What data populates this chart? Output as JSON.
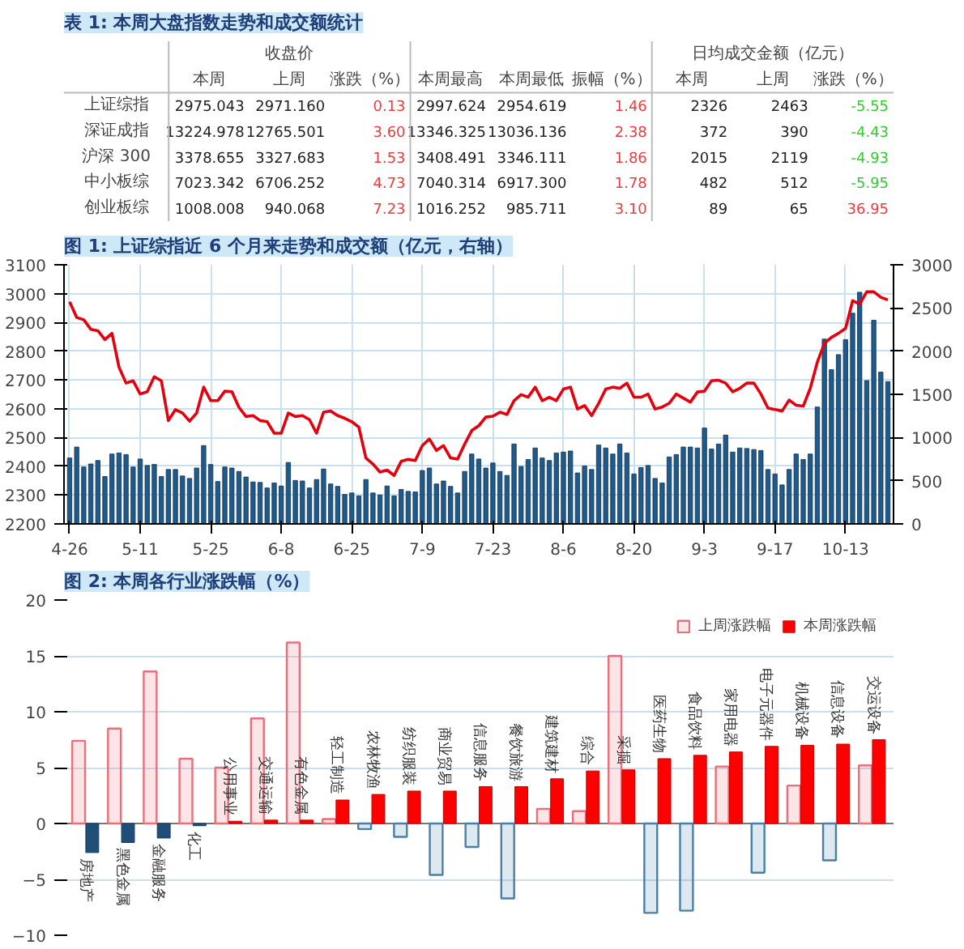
{
  "chart_data": [
    {
      "type": "heatmap",
      "title": "表 1: 本周大盘指数走势和成交额统计",
      "annotations": [
        "收盘价",
        "日均成交金额（亿元）"
      ],
      "categories": [
        "本周",
        "上周",
        "涨跌（%）",
        "本周最高",
        "本周最低",
        "振幅（%）",
        "本周",
        "上周",
        "涨跌（%）"
      ],
      "y_categories": [
        "上证综指",
        "深证成指",
        "沪深 300",
        "中小板综",
        "创业板综"
      ],
      "cells": [
        [
          2975.043,
          2971.16,
          0.13,
          2997.624,
          2954.619,
          1.46,
          2326,
          2463,
          -5.55
        ],
        [
          13224.978,
          12765.501,
          3.6,
          13346.325,
          13036.136,
          2.38,
          372,
          390,
          -4.43
        ],
        [
          3378.655,
          3327.683,
          1.53,
          3408.491,
          3346.111,
          1.86,
          2015,
          2119,
          -4.93
        ],
        [
          7023.342,
          6706.252,
          4.73,
          7040.314,
          6917.3,
          1.78,
          482,
          512,
          -5.95
        ],
        [
          1008.008,
          940.068,
          7.23,
          1016.252,
          985.711,
          3.1,
          89,
          65,
          36.95
        ]
      ],
      "cell_labels": [
        [
          "2975.043",
          "2971.160",
          "0.13",
          "2997.624",
          "2954.619",
          "1.46",
          "2326",
          "2463",
          "-5.55"
        ],
        [
          "13224.978",
          "12765.501",
          "3.60",
          "13346.325",
          "13036.136",
          "2.38",
          "372",
          "390",
          "-4.43"
        ],
        [
          "3378.655",
          "3327.683",
          "1.53",
          "3408.491",
          "3346.111",
          "1.86",
          "2015",
          "2119",
          "-4.93"
        ],
        [
          "7023.342",
          "6706.252",
          "4.73",
          "7040.314",
          "6917.300",
          "1.78",
          "482",
          "512",
          "-5.95"
        ],
        [
          "1008.008",
          "940.068",
          "7.23",
          "1016.252",
          "985.711",
          "3.10",
          "89",
          "65",
          "36.95"
        ]
      ]
    },
    {
      "type": "bar",
      "title": "图 1: 上证综指近 6 个月来走势和成交额（亿元，右轴）",
      "categories": [
        "4-26",
        null,
        null,
        null,
        null,
        null,
        null,
        null,
        null,
        null,
        "5-11",
        null,
        null,
        null,
        null,
        null,
        null,
        null,
        null,
        null,
        "5-25",
        null,
        null,
        null,
        null,
        null,
        null,
        null,
        null,
        null,
        "6-8",
        null,
        null,
        null,
        null,
        null,
        null,
        null,
        null,
        null,
        "6-25",
        null,
        null,
        null,
        null,
        null,
        null,
        null,
        null,
        null,
        "7-9",
        null,
        null,
        null,
        null,
        null,
        null,
        null,
        null,
        null,
        "7-23",
        null,
        null,
        null,
        null,
        null,
        null,
        null,
        null,
        null,
        "8-6",
        null,
        null,
        null,
        null,
        null,
        null,
        null,
        null,
        null,
        "8-20",
        null,
        null,
        null,
        null,
        null,
        null,
        null,
        null,
        null,
        "9-3",
        null,
        null,
        null,
        null,
        null,
        null,
        null,
        null,
        null,
        "9-17",
        null,
        null,
        null,
        null,
        null,
        null,
        null,
        null,
        null,
        "10-13",
        null,
        null,
        null,
        null,
        null,
        null
      ],
      "ylim": [
        2200,
        3100
      ],
      "yticks": [
        2200,
        2300,
        2400,
        2500,
        2600,
        2700,
        2800,
        2900,
        3000,
        3100
      ],
      "y2lim": [
        0,
        3000
      ],
      "y2ticks": [
        0,
        500,
        1000,
        1500,
        2000,
        2500,
        3000
      ],
      "grid": true,
      "series": [
        {
          "type": "bar",
          "axis": "y2",
          "color": "#1f5a8c",
          "values": [
            763,
            890,
            659,
            694,
            734,
            549,
            809,
            821,
            803,
            659,
            751,
            676,
            688,
            549,
            630,
            630,
            555,
            526,
            647,
            907,
            688,
            491,
            659,
            647,
            607,
            543,
            486,
            480,
            416,
            474,
            439,
            711,
            503,
            497,
            416,
            514,
            636,
            462,
            434,
            341,
            358,
            324,
            514,
            358,
            335,
            439,
            324,
            399,
            376,
            370,
            618,
            647,
            462,
            497,
            434,
            358,
            607,
            809,
            751,
            647,
            705,
            607,
            561,
            925,
            665,
            746,
            879,
            763,
            734,
            821,
            832,
            844,
            590,
            671,
            630,
            913,
            879,
            809,
            925,
            821,
            578,
            653,
            676,
            526,
            474,
            775,
            803,
            890,
            890,
            879,
            1110,
            867,
            925,
            1029,
            832,
            879,
            873,
            861,
            850,
            630,
            578,
            451,
            630,
            809,
            746,
            809,
            1353,
            2139,
            1786,
            1960,
            2133,
            2439,
            2682,
            1659,
            2358,
            1757,
            1647
          ]
        },
        {
          "type": "line",
          "color": "#e3000f",
          "values": [
            2971,
            2917,
            2909,
            2876,
            2871,
            2840,
            2862,
            2744,
            2689,
            2697,
            2651,
            2659,
            2711,
            2697,
            2559,
            2597,
            2585,
            2557,
            2585,
            2675,
            2628,
            2628,
            2661,
            2659,
            2605,
            2573,
            2576,
            2559,
            2555,
            2515,
            2515,
            2585,
            2573,
            2576,
            2562,
            2515,
            2588,
            2592,
            2576,
            2567,
            2555,
            2536,
            2429,
            2408,
            2380,
            2387,
            2368,
            2417,
            2424,
            2420,
            2472,
            2495,
            2455,
            2472,
            2429,
            2425,
            2477,
            2524,
            2541,
            2571,
            2574,
            2588,
            2580,
            2628,
            2649,
            2640,
            2675,
            2628,
            2640,
            2628,
            2668,
            2675,
            2599,
            2611,
            2576,
            2619,
            2668,
            2675,
            2671,
            2689,
            2640,
            2640,
            2651,
            2599,
            2606,
            2619,
            2651,
            2637,
            2623,
            2658,
            2661,
            2697,
            2699,
            2689,
            2659,
            2671,
            2689,
            2689,
            2651,
            2602,
            2597,
            2592,
            2630,
            2612,
            2609,
            2671,
            2762,
            2827,
            2848,
            2862,
            2879,
            2975,
            2963,
            3006,
            3006,
            2987,
            2978
          ]
        }
      ]
    },
    {
      "type": "bar",
      "title": "图 2: 本周各行业涨跌幅（%）",
      "categories": [
        "房地产",
        "黑色金属",
        "金融服务",
        "化工",
        "公用事业",
        "交通运输",
        "有色金属",
        "轻工制造",
        "农林牧渔",
        "纺织服装",
        "商业贸易",
        "信息服务",
        "餐饮旅游",
        "建筑建材",
        "综合",
        "采掘",
        "医药生物",
        "食品饮料",
        "家用电器",
        "电子元器件",
        "机械设备",
        "信息设备",
        "交运设备"
      ],
      "ylim": [
        -10,
        20
      ],
      "yticks": [
        -10,
        -5,
        0,
        5,
        10,
        15,
        20
      ],
      "grid": "y",
      "legend": "top right",
      "tick_labels": "y",
      "series": [
        {
          "name": "上周涨跌幅",
          "color": "#e8707a",
          "values": [
            7.4,
            8.5,
            13.6,
            5.8,
            5.0,
            9.4,
            16.2,
            0.4,
            -0.5,
            -1.2,
            -4.6,
            -2.1,
            -6.7,
            1.3,
            1.1,
            15.0,
            -8.0,
            -7.8,
            5.1,
            -4.4,
            3.4,
            -3.3,
            5.2
          ],
          "colors": [
            "#e8707a",
            "#e8707a",
            "#e8707a",
            "#e8707a",
            "#e8707a",
            "#e8707a",
            "#e8707a",
            "#e8707a",
            "#4a7fa8",
            "#4a7fa8",
            "#4a7fa8",
            "#4a7fa8",
            "#4a7fa8",
            "#e8707a",
            "#e8707a",
            "#e8707a",
            "#4a7fa8",
            "#4a7fa8",
            "#e8707a",
            "#4a7fa8",
            "#e8707a",
            "#4a7fa8",
            "#e8707a"
          ]
        },
        {
          "name": "本周涨跌幅",
          "color": "#ff0000",
          "values": [
            -2.6,
            -1.7,
            -1.3,
            -0.2,
            0.2,
            0.3,
            0.3,
            2.1,
            2.6,
            2.9,
            2.9,
            3.3,
            3.3,
            4.0,
            4.7,
            4.8,
            5.8,
            6.1,
            6.4,
            6.9,
            7.0,
            7.1,
            7.5
          ],
          "colors": [
            "#1f4e79",
            "#1f4e79",
            "#1f4e79",
            "#1f4e79",
            "#ff0000",
            "#ff0000",
            "#ff0000",
            "#ff0000",
            "#ff0000",
            "#ff0000",
            "#ff0000",
            "#ff0000",
            "#ff0000",
            "#ff0000",
            "#ff0000",
            "#ff0000",
            "#ff0000",
            "#ff0000",
            "#ff0000",
            "#ff0000",
            "#ff0000",
            "#ff0000",
            "#ff0000"
          ]
        }
      ]
    }
  ]
}
